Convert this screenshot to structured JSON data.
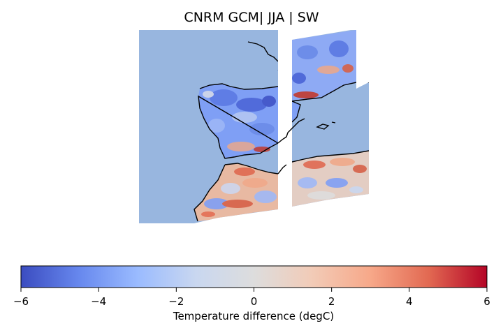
{
  "figure": {
    "title": "CNRM GCM| JJA | SW",
    "water_color": "#98b6df",
    "coastline_color": "#000000"
  },
  "colorbar": {
    "cmap": "coolwarm",
    "vmin": -6,
    "vmax": 6,
    "ticks": [
      "−6",
      "−4",
      "−2",
      "0",
      "2",
      "4",
      "6"
    ],
    "label": "Temperature difference (degC)",
    "stops": [
      "#3b4cc0",
      "#6788ee",
      "#9abbff",
      "#c9d7f0",
      "#dddddd",
      "#f2cbb7",
      "#f7a889",
      "#e26952",
      "#b40426"
    ]
  }
}
